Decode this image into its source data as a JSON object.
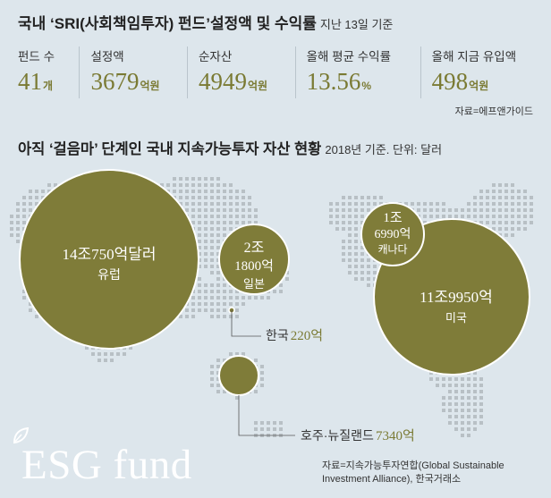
{
  "header": {
    "title": "국내 ‘SRI(사회책임투자) 펀드’설정액 및 수익률",
    "subtitle": "지난 13일 기준"
  },
  "stats": [
    {
      "label": "펀드 수",
      "value": "41",
      "unit": "개"
    },
    {
      "label": "설정액",
      "value": "3679",
      "unit": "억원"
    },
    {
      "label": "순자산",
      "value": "4949",
      "unit": "억원"
    },
    {
      "label": "올해 평균 수익률",
      "value": "13.56",
      "unit": "%"
    },
    {
      "label": "올해 지금 유입액",
      "value": "498",
      "unit": "억원"
    }
  ],
  "source_top": "자료=에프앤가이드",
  "section2": {
    "title": "아직 ‘걸음마’ 단계인 국내 지속가능투자 자산 현황",
    "subtitle": "2018년 기준. 단위: 달러"
  },
  "chart_data": {
    "type": "bubble-map",
    "unit": "달러",
    "year": "2018",
    "regions": [
      {
        "name": "유럽",
        "value_usd": 14075000000000,
        "label_value": "14조750억달러"
      },
      {
        "name": "일본",
        "value_usd": 2180000000000,
        "label_value": "2조 1800억"
      },
      {
        "name": "캐나다",
        "value_usd": 1699000000000,
        "label_value": "1조 6990억"
      },
      {
        "name": "미국",
        "value_usd": 11995000000000,
        "label_value": "11조9950억"
      },
      {
        "name": "한국",
        "value_usd": 22000000000,
        "label_value": "220억"
      },
      {
        "name": "호주·뉴질랜드",
        "value_usd": 734000000000,
        "label_value": "7340억"
      }
    ],
    "colors": {
      "bubble": "#7f7c39",
      "bubble_stroke": "#ffffff",
      "map_dots": "#b8c0c5",
      "label_accent": "#7a7a33"
    }
  },
  "labels": {
    "europe_value": "14조750억달러",
    "europe_name": "유럽",
    "japan_value_1": "2조",
    "japan_value_2": "1800억",
    "japan_name": "일본",
    "canada_value_1": "1조",
    "canada_value_2": "6990억",
    "canada_name": "캐나다",
    "usa_value": "11조9950억",
    "usa_name": "미국",
    "korea_name": "한국",
    "korea_value": "220억",
    "anz_name": "호주·뉴질랜드",
    "anz_value": "7340억"
  },
  "logo": "ESG fund",
  "source_bottom": "자료=지속가능투자연합(Global Sustainable Investment Alliance), 한국거래소"
}
